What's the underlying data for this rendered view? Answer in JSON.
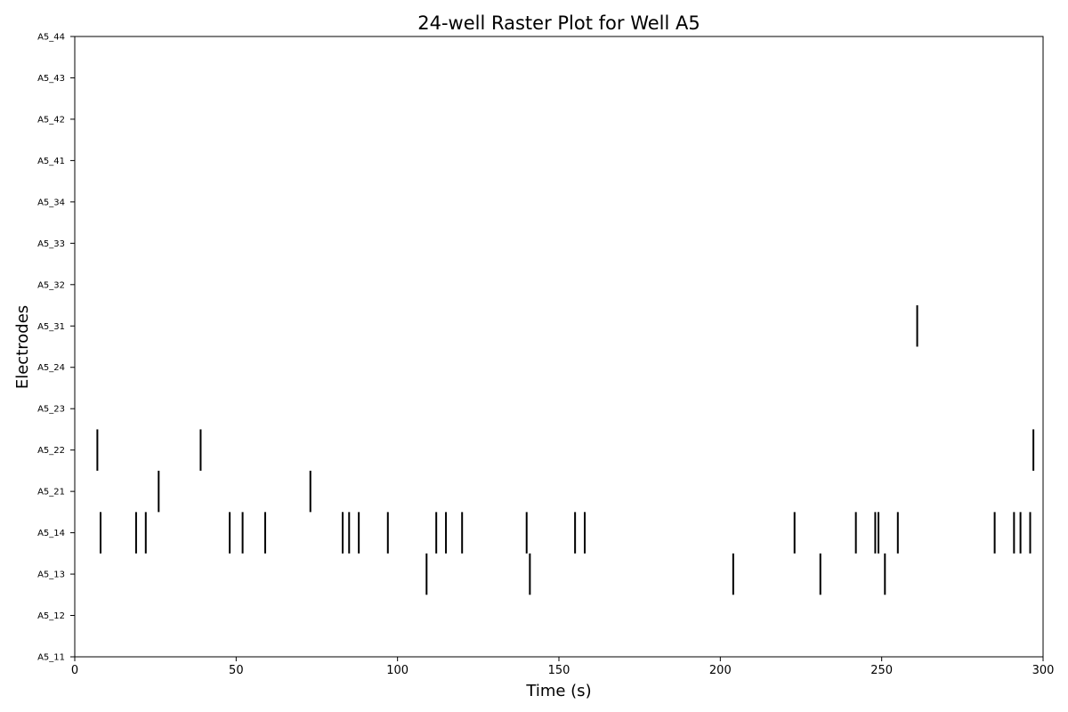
{
  "chart_data": {
    "type": "raster",
    "title": "24-well Raster Plot for Well A5",
    "xlabel": "Time (s)",
    "ylabel": "Electrodes",
    "xlim": [
      0,
      300
    ],
    "x_ticks": [
      0,
      50,
      100,
      150,
      200,
      250,
      300
    ],
    "grid": false,
    "electrodes": [
      "A5_11",
      "A5_12",
      "A5_13",
      "A5_14",
      "A5_21",
      "A5_22",
      "A5_23",
      "A5_24",
      "A5_31",
      "A5_32",
      "A5_33",
      "A5_34",
      "A5_41",
      "A5_42",
      "A5_43",
      "A5_44"
    ],
    "spikes": [
      {
        "electrode": "A5_13",
        "times": [
          109,
          141,
          204,
          231,
          251
        ]
      },
      {
        "electrode": "A5_14",
        "times": [
          8,
          19,
          22,
          48,
          52,
          59,
          83,
          85,
          88,
          97,
          112,
          115,
          120,
          140,
          155,
          158,
          223,
          242,
          248,
          249,
          255,
          285,
          291,
          293,
          296
        ]
      },
      {
        "electrode": "A5_21",
        "times": [
          26,
          73
        ]
      },
      {
        "electrode": "A5_22",
        "times": [
          7,
          39,
          297
        ]
      },
      {
        "electrode": "A5_31",
        "times": [
          261
        ]
      }
    ],
    "colors": {
      "spike": "#000000",
      "axes": "#000000",
      "background": "#ffffff"
    }
  }
}
